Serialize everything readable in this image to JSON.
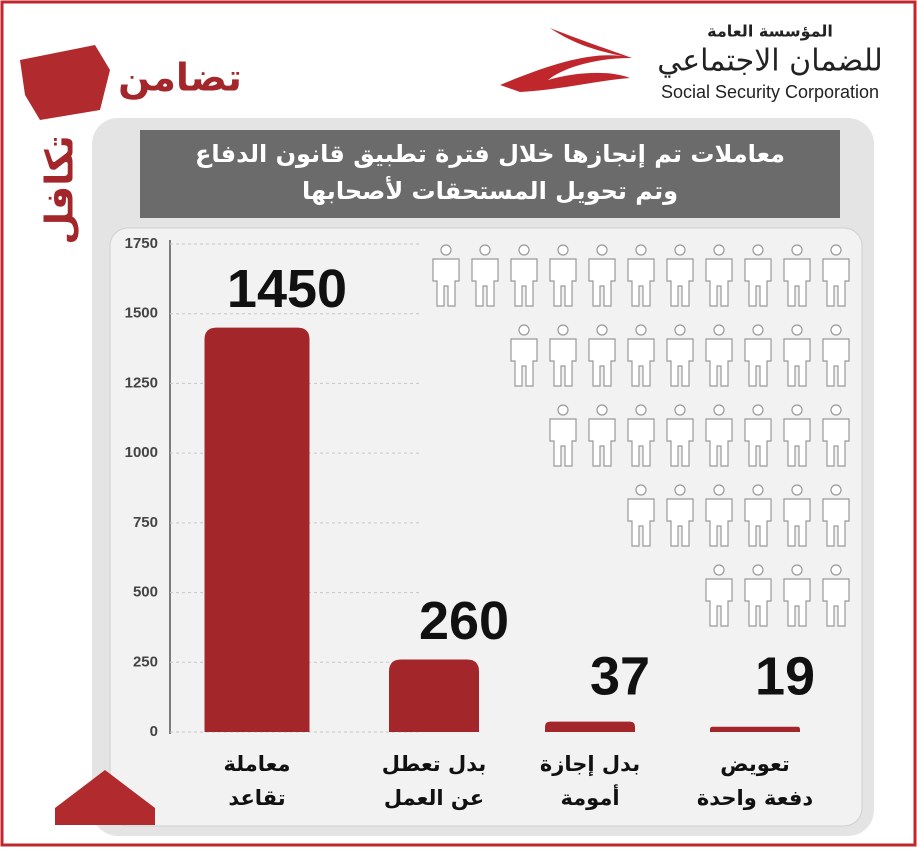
{
  "header": {
    "org_ar_1": "المؤسسة العامة",
    "org_ar_2": "للضمان الاجتماعي",
    "org_en": "Social Security Corporation",
    "slogan_1": "تضامن",
    "slogan_2": "تكافل"
  },
  "chart_data": {
    "type": "bar",
    "title": [
      "معاملات تم إنجازها خلال فترة تطبيق قانون الدفاع",
      "وتم تحويل المستحقات لأصحابها"
    ],
    "categories": [
      [
        "معاملة",
        "تقاعد"
      ],
      [
        "بدل تعطل",
        "عن العمل"
      ],
      [
        "بدل إجازة",
        "أمومة"
      ],
      [
        "تعويض",
        "دفعة واحدة"
      ]
    ],
    "values": [
      1450,
      260,
      37,
      19
    ],
    "color": "#a3262a",
    "ylim": [
      0,
      1750
    ],
    "yticks": [
      0,
      250,
      500,
      750,
      1000,
      1250,
      1500,
      1750
    ],
    "grid": true
  }
}
